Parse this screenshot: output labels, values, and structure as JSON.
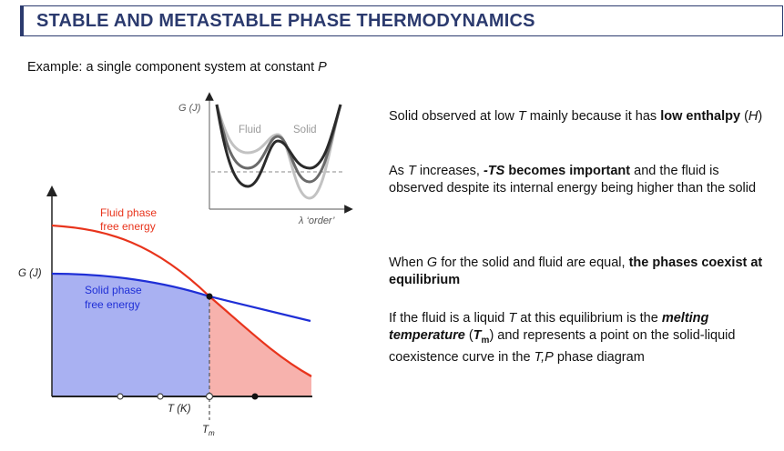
{
  "slide": {
    "title": "STABLE AND METASTABLE PHASE THERMODYNAMICS",
    "subtitle_prefix": "Example: a single component system at constant ",
    "subtitle_var": "P"
  },
  "inset_plot": {
    "y_label": "G (J)",
    "x_label": "λ ‘order’",
    "fluid_label": "Fluid",
    "solid_label": "Solid"
  },
  "main_plot": {
    "y_label": "G (J)",
    "x_label": "T (K)",
    "tm_label": "T",
    "tm_sub": "m",
    "fluid_line1": "Fluid phase",
    "fluid_line2": "free energy",
    "solid_line1": "Solid phase",
    "solid_line2": "free energy",
    "colors": {
      "fluid": "#e8341c",
      "solid": "#1f2fd6",
      "solid_fill": "#a9b1f2",
      "fluid_fill": "#f7b2ad"
    }
  },
  "text": {
    "p1": {
      "a": "Solid observed at low ",
      "T": "T",
      "b": " mainly because it has ",
      "bold": "low enthalpy",
      "c": " (",
      "H": "H",
      "d": ")"
    },
    "p2": {
      "a": "As ",
      "T": "T",
      "b": " increases, ",
      "bold_ts": "-TS",
      "bold_rest": " becomes important",
      "c": " and the fluid is observed despite its internal energy being higher than the solid"
    },
    "p3": {
      "a": "When ",
      "G": "G",
      "b": " for the solid and fluid are equal, ",
      "bold": "the phases coexist at equilibrium"
    },
    "p4": {
      "a": "If the fluid is a liquid ",
      "T": "T",
      "b": " at this equilibrium is the ",
      "bold_it": "melting temperature",
      "c": " (",
      "Tm": "T",
      "m": "m",
      "d": ") and represents a point on the solid-liquid coexistence curve in the ",
      "TP": "T,P",
      "e": " phase diagram"
    }
  }
}
